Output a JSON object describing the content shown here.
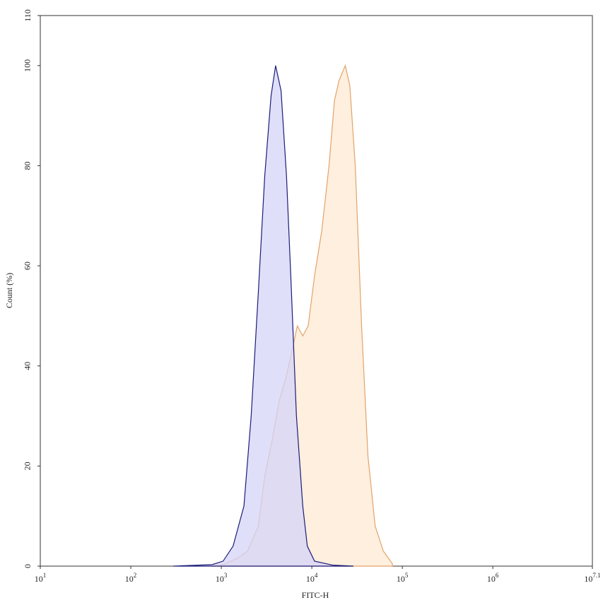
{
  "chart_data": {
    "type": "area",
    "x_label": "FITC-H",
    "y_label": "Count (%)",
    "x_log": true,
    "xlim": [
      10,
      12589254
    ],
    "ylim": [
      0,
      110
    ],
    "xticks": [
      {
        "value": 10,
        "label": "10",
        "sup": "1"
      },
      {
        "value": 100,
        "label": "10",
        "sup": "2"
      },
      {
        "value": 1000,
        "label": "10",
        "sup": "3"
      },
      {
        "value": 10000,
        "label": "10",
        "sup": "4"
      },
      {
        "value": 100000,
        "label": "10",
        "sup": "5"
      },
      {
        "value": 1000000,
        "label": "10",
        "sup": "6"
      },
      {
        "value": 12589254,
        "label": "10",
        "sup": "7.1"
      }
    ],
    "yticks": [
      0,
      20,
      40,
      60,
      80,
      100,
      110
    ],
    "series": [
      {
        "color": "#e3a36a",
        "fill": "#fde9d3",
        "x": [
          794,
          1047,
          1479,
          1950,
          2570,
          3020,
          3631,
          4365,
          5248,
          6026,
          6918,
          7943,
          9120,
          10715,
          12882,
          15488,
          17783,
          19953,
          23442,
          26303,
          30200,
          35481,
          41687,
          50119,
          61660,
          77625
        ],
        "values": [
          0,
          0.3,
          1.5,
          3,
          8,
          18,
          25,
          33,
          38,
          43,
          48,
          46,
          48,
          58,
          67,
          80,
          93,
          97,
          100,
          96,
          80,
          48,
          22,
          8,
          3,
          0.5
        ]
      },
      {
        "color": "#1c1c78",
        "fill": "#d4d4f8",
        "x": [
          295,
          794,
          1047,
          1349,
          1778,
          2138,
          2570,
          3020,
          3548,
          3981,
          4571,
          5248,
          5888,
          6761,
          7943,
          8913,
          10715,
          16982,
          28840
        ],
        "values": [
          0,
          0.3,
          1,
          4,
          12,
          30,
          55,
          78,
          94,
          100,
          95,
          78,
          57,
          30,
          12,
          4,
          1,
          0.2,
          0
        ]
      }
    ]
  }
}
